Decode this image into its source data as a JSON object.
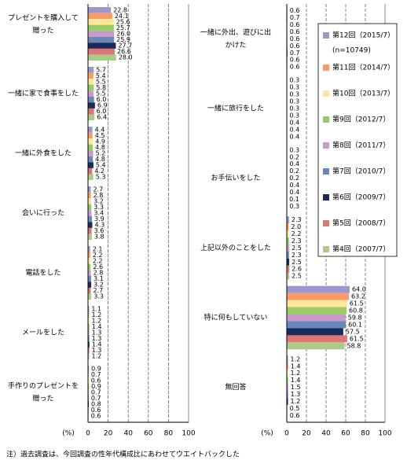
{
  "charts": [
    {
      "type": "bar",
      "orientation": "horizontal",
      "categories": [
        [
          "プレゼントを購入して",
          "贈った"
        ],
        [
          "一緒に家で食事をした"
        ],
        [
          "一緒に外食をした"
        ],
        [
          "会いに行った"
        ],
        [
          "電話をした"
        ],
        [
          "メールをした"
        ],
        [
          "手作りのプレゼントを",
          "贈った"
        ]
      ],
      "xlim": [
        0,
        100
      ],
      "xticks": [
        0,
        20,
        40,
        60,
        80,
        100
      ],
      "xlabel": "(%)",
      "grid": true,
      "series": [
        {
          "color": "#9999cc",
          "values": [
            22.8,
            5.7,
            4.4,
            2.7,
            2.1,
            1.1,
            0.9
          ],
          "value_labels": [
            "22.8",
            "5.7",
            "4.4",
            "2.7",
            "2.1",
            "1.1",
            "0.9"
          ]
        },
        {
          "color": "#ff9966",
          "values": [
            24.1,
            5.4,
            4.5,
            2.8,
            2.2,
            1.2,
            0.7
          ],
          "value_labels": [
            "24.1",
            "5.4",
            "4.5",
            "2.8",
            "2.2",
            "1.2",
            "0.7"
          ]
        },
        {
          "color": "#ffe699",
          "values": [
            25.6,
            5.5,
            4.9,
            3.2,
            2.2,
            1.2,
            0.6
          ],
          "value_labels": [
            "25.6",
            "5.5",
            "4.9",
            "3.2",
            "2.2",
            "1.2",
            "0.6"
          ]
        },
        {
          "color": "#99cc66",
          "values": [
            25.7,
            5.8,
            4.8,
            3.3,
            2.6,
            1.4,
            0.9
          ],
          "value_labels": [
            "25.7",
            "5.8",
            "4.8",
            "3.3",
            "2.6",
            "1.4",
            "0.9"
          ]
        },
        {
          "color": "#cc99cc",
          "values": [
            26.0,
            5.5,
            5.2,
            3.4,
            2.8,
            1.3,
            0.7
          ],
          "value_labels": [
            "26.0",
            "5.5",
            "5.2",
            "3.4",
            "2.8",
            "1.3",
            "0.7"
          ]
        },
        {
          "color": "#6688bb",
          "values": [
            25.9,
            6.0,
            4.8,
            3.9,
            3.1,
            1.3,
            0.7
          ],
          "value_labels": [
            "25.9",
            "6.0",
            "4.8",
            "3.9",
            "3.1",
            "1.3",
            "0.7"
          ]
        },
        {
          "color": "#1a2a5a",
          "values": [
            27.7,
            6.9,
            5.4,
            4.3,
            3.2,
            1.4,
            0.8
          ],
          "value_labels": [
            "27.7",
            "6.9",
            "5.4",
            "4.3",
            "3.2",
            "1.4",
            "0.8"
          ]
        },
        {
          "color": "#dd7777",
          "values": [
            26.6,
            6.0,
            4.2,
            3.6,
            2.7,
            1.3,
            0.6
          ],
          "value_labels": [
            "26.6",
            "6.0",
            "4.2",
            "3.6",
            "2.7",
            "1.3",
            "0.6"
          ]
        },
        {
          "color": "#aacc88",
          "values": [
            28.0,
            6.4,
            5.3,
            3.8,
            3.3,
            1.2,
            0.6
          ],
          "value_labels": [
            "28.0",
            "6.4",
            "5.3",
            "3.8",
            "3.3",
            "1.2",
            "0.6"
          ]
        }
      ]
    },
    {
      "type": "bar",
      "orientation": "horizontal",
      "categories": [
        [
          "一緒に外出、遊びに出",
          "かけた"
        ],
        [
          "一緒に旅行をした"
        ],
        [
          "お手伝いをした"
        ],
        [
          "上記以外のことをした"
        ],
        [
          "特に何もしていない"
        ],
        [
          "無回答"
        ]
      ],
      "xlim": [
        0,
        100
      ],
      "xticks": [
        0,
        20,
        40,
        60,
        80,
        100
      ],
      "xlabel": "(%)",
      "grid": true,
      "legend_note": "(n=10749)",
      "series": [
        {
          "name": "第12回（2015/7）",
          "color": "#9999cc",
          "values": [
            0.6,
            0.3,
            0.3,
            2.3,
            64.0,
            1.2
          ],
          "value_labels": [
            "0.6",
            "0.3",
            "0.3",
            "2.3",
            "64.0",
            "1.2"
          ]
        },
        {
          "name": "第11回（2014/7）",
          "color": "#ff9966",
          "values": [
            0.7,
            0.3,
            0.2,
            2.0,
            63.2,
            1.4
          ],
          "value_labels": [
            "0.7",
            "0.3",
            "0.2",
            "2.0",
            "63.2",
            "1.4"
          ]
        },
        {
          "name": "第10回（2013/7）",
          "color": "#ffe699",
          "values": [
            0.6,
            0.3,
            0.4,
            2.2,
            61.5,
            1.2
          ],
          "value_labels": [
            "0.6",
            "0.3",
            "0.4",
            "2.2",
            "61.5",
            "1.2"
          ]
        },
        {
          "name": "第9回（2012/7）",
          "color": "#99cc66",
          "values": [
            0.6,
            0.3,
            0.2,
            2.3,
            60.8,
            1.4
          ],
          "value_labels": [
            "0.6",
            "0.3",
            "0.2",
            "2.3",
            "60.8",
            "1.4"
          ]
        },
        {
          "name": "第8回（2011/7）",
          "color": "#cc99cc",
          "values": [
            0.6,
            0.3,
            0.2,
            2.5,
            59.8,
            1.5
          ],
          "value_labels": [
            "0.6",
            "0.3",
            "0.2",
            "2.5",
            "59.8",
            "1.5"
          ]
        },
        {
          "name": "第7回（2010/7）",
          "color": "#6688bb",
          "values": [
            0.6,
            0.3,
            0.4,
            2.3,
            60.1,
            1.3
          ],
          "value_labels": [
            "0.6",
            "0.3",
            "0.4",
            "2.3",
            "60.1",
            "1.3"
          ]
        },
        {
          "name": "第6回（2009/7）",
          "color": "#1a2a5a",
          "values": [
            0.7,
            0.4,
            0.4,
            2.5,
            57.5,
            1.2
          ],
          "value_labels": [
            "0.7",
            "0.4",
            "0.4",
            "2.5",
            "57.5",
            "1.2"
          ]
        },
        {
          "name": "第5回（2008/7）",
          "color": "#dd7777",
          "values": [
            0.6,
            0.4,
            0.1,
            2.6,
            61.5,
            0.5
          ],
          "value_labels": [
            "0.6",
            "0.4",
            "0.1",
            "2.6",
            "61.5",
            "0.5"
          ]
        },
        {
          "name": "第4回（2007/7）",
          "color": "#aacc88",
          "values": [
            0.6,
            0.4,
            0.3,
            2.5,
            58.8,
            0.6
          ],
          "value_labels": [
            "0.6",
            "0.4",
            "0.3",
            "2.5",
            "58.8",
            "0.6"
          ]
        }
      ]
    }
  ],
  "note": "注）過去調査は、今回調査の性年代構成比にあわせてウエイトバックした"
}
